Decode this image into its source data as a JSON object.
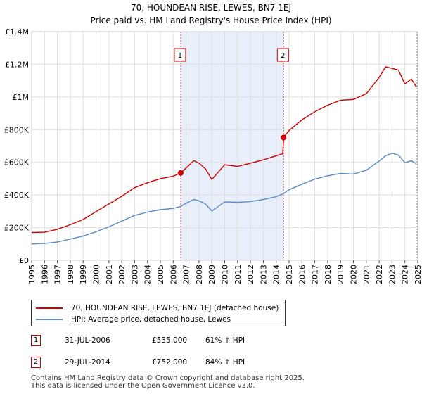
{
  "chart_data": {
    "type": "line",
    "title_line1": "70, HOUNDEAN RISE, LEWES, BN7 1EJ",
    "title_line2": "Price paid vs. HM Land Registry's House Price Index (HPI)",
    "xlim": [
      1995.0,
      2025.0
    ],
    "ylim": [
      0,
      1400000
    ],
    "y_ticks": [
      {
        "value": 0,
        "label": "£0"
      },
      {
        "value": 200000,
        "label": "£200K"
      },
      {
        "value": 400000,
        "label": "£400K"
      },
      {
        "value": 600000,
        "label": "£600K"
      },
      {
        "value": 800000,
        "label": "£800K"
      },
      {
        "value": 1000000,
        "label": "£1M"
      },
      {
        "value": 1200000,
        "label": "£1.2M"
      },
      {
        "value": 1400000,
        "label": "£1.4M"
      }
    ],
    "x_ticks": [
      "1995",
      "1996",
      "1997",
      "1998",
      "1999",
      "2000",
      "2001",
      "2002",
      "2003",
      "2004",
      "2005",
      "2006",
      "2007",
      "2008",
      "2009",
      "2010",
      "2011",
      "2012",
      "2013",
      "2014",
      "2015",
      "2016",
      "2017",
      "2018",
      "2019",
      "2020",
      "2021",
      "2022",
      "2023",
      "2024",
      "2025"
    ],
    "shaded_span": [
      2006.58,
      2014.58
    ],
    "series": [
      {
        "name": "70, HOUNDEAN RISE, LEWES, BN7 1EJ (detached house)",
        "color": "#cc0000",
        "x": [
          1995.0,
          1996.0,
          1997.0,
          1998.0,
          1999.0,
          2000.0,
          2001.0,
          2002.0,
          2003.0,
          2004.0,
          2005.0,
          2006.0,
          2006.58,
          2007.0,
          2007.6,
          2008.0,
          2008.5,
          2009.0,
          2009.5,
          2010.0,
          2011.0,
          2012.0,
          2013.0,
          2014.0,
          2014.5,
          2014.58,
          2015.0,
          2016.0,
          2017.0,
          2018.0,
          2019.0,
          2020.0,
          2021.0,
          2022.0,
          2022.5,
          2023.0,
          2023.5,
          2024.0,
          2024.5,
          2024.9
        ],
        "y": [
          170000,
          172000,
          190000,
          218000,
          250000,
          298000,
          345000,
          392000,
          445000,
          475000,
          500000,
          515000,
          535000,
          565000,
          610000,
          595000,
          560000,
          495000,
          540000,
          585000,
          575000,
          595000,
          615000,
          640000,
          652000,
          752000,
          795000,
          860000,
          910000,
          950000,
          980000,
          985000,
          1020000,
          1120000,
          1185000,
          1175000,
          1165000,
          1080000,
          1110000,
          1060000
        ]
      },
      {
        "name": "HPI: Average price, detached house, Lewes",
        "color": "#5b8ac4",
        "x": [
          1995.0,
          1996.0,
          1997.0,
          1998.0,
          1999.0,
          2000.0,
          2001.0,
          2002.0,
          2003.0,
          2004.0,
          2005.0,
          2006.0,
          2006.58,
          2007.0,
          2007.6,
          2008.0,
          2008.5,
          2009.0,
          2009.5,
          2010.0,
          2011.0,
          2012.0,
          2013.0,
          2014.0,
          2014.58,
          2015.0,
          2016.0,
          2017.0,
          2018.0,
          2019.0,
          2020.0,
          2021.0,
          2022.0,
          2022.5,
          2023.0,
          2023.5,
          2024.0,
          2024.5,
          2024.9
        ],
        "y": [
          100000,
          103000,
          112000,
          130000,
          148000,
          175000,
          205000,
          240000,
          275000,
          295000,
          310000,
          318000,
          330000,
          350000,
          372000,
          365000,
          345000,
          302000,
          330000,
          358000,
          355000,
          360000,
          372000,
          390000,
          408000,
          432000,
          466000,
          497000,
          518000,
          532000,
          528000,
          552000,
          608000,
          640000,
          655000,
          645000,
          598000,
          610000,
          590000
        ]
      }
    ],
    "sales": [
      {
        "marker": "1",
        "x": 2006.58,
        "y": 535000
      },
      {
        "marker": "2",
        "x": 2014.58,
        "y": 752000
      }
    ],
    "sale_rows": [
      {
        "marker": "1",
        "date": "31-JUL-2006",
        "price": "£535,000",
        "hpi": "61% ↑ HPI"
      },
      {
        "marker": "2",
        "date": "29-JUL-2014",
        "price": "£752,000",
        "hpi": "84% ↑ HPI"
      }
    ],
    "footer_line1": "Contains HM Land Registry data © Crown copyright and database right 2025.",
    "footer_line2": "This data is licensed under the Open Government Licence v3.0."
  }
}
